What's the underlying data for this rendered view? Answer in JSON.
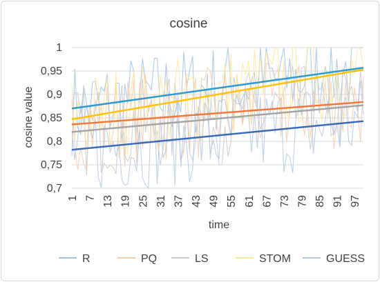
{
  "chart_data": {
    "type": "line",
    "title": "cosine",
    "xlabel": "time",
    "ylabel": "cosine value",
    "ylim": [
      0.7,
      1.0
    ],
    "yticks": [
      "0,7",
      "0,75",
      "0,8",
      "0,85",
      "0,9",
      "0,95",
      "1"
    ],
    "xticks": [
      "1",
      "7",
      "13",
      "19",
      "25",
      "31",
      "37",
      "43",
      "49",
      "55",
      "61",
      "67",
      "73",
      "79",
      "85",
      "91",
      "97"
    ],
    "x_range": [
      1,
      100
    ],
    "grid": "horizontal",
    "legend_position": "bottom",
    "series": [
      {
        "name": "R",
        "color": "#9dc3e6",
        "trend": {
          "start": 0.87,
          "end": 0.957,
          "color": "#2e9ad0"
        }
      },
      {
        "name": "PQ",
        "color": "#f8cbad",
        "trend": {
          "start": 0.836,
          "end": 0.884,
          "color": "#f0783c"
        }
      },
      {
        "name": "LS",
        "color": "#c9c9c9",
        "trend": {
          "start": 0.82,
          "end": 0.877,
          "color": "#a5a5a5"
        }
      },
      {
        "name": "STOM",
        "color": "#ffe699",
        "trend": {
          "start": 0.847,
          "end": 0.953,
          "color": "#ffc000"
        }
      },
      {
        "name": "GUESS",
        "color": "#b4c7e7",
        "trend": {
          "start": 0.782,
          "end": 0.843,
          "color": "#3a6bb5"
        }
      }
    ]
  }
}
